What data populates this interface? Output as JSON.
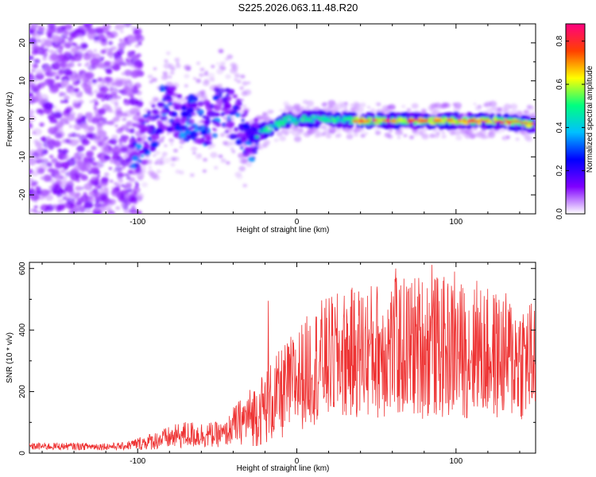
{
  "title": "S225.2026.063.11.48.R20",
  "chart_data": [
    {
      "type": "heatmap",
      "name": "spectrogram",
      "xlabel": "Height of straight line (km)",
      "ylabel": "Frequency (Hz)",
      "xlim": [
        -168,
        150
      ],
      "ylim": [
        -25,
        25
      ],
      "xticks": [
        -100,
        0,
        100
      ],
      "yticks": [
        -20,
        -10,
        0,
        10,
        20
      ],
      "ridge": [
        {
          "x": -100,
          "y": -8
        },
        {
          "x": -90,
          "y": -2
        },
        {
          "x": -82,
          "y": 4
        },
        {
          "x": -75,
          "y": 1
        },
        {
          "x": -65,
          "y": 0
        },
        {
          "x": -55,
          "y": -1
        },
        {
          "x": -48,
          "y": 4
        },
        {
          "x": -40,
          "y": 1
        },
        {
          "x": -30,
          "y": -5
        },
        {
          "x": -20,
          "y": -3
        },
        {
          "x": -10,
          "y": -1
        },
        {
          "x": -5,
          "y": 0
        },
        {
          "x": 0,
          "y": -1
        },
        {
          "x": 5,
          "y": 0
        },
        {
          "x": 15,
          "y": 0
        },
        {
          "x": 40,
          "y": -0.5
        },
        {
          "x": 80,
          "y": -0.5
        },
        {
          "x": 120,
          "y": -0.5
        },
        {
          "x": 140,
          "y": -1
        },
        {
          "x": 148,
          "y": -1.5
        }
      ],
      "colorbar": {
        "label": "Normalized spectral amplitude",
        "range": [
          0.0,
          0.88
        ],
        "ticks": [
          "0.0",
          "0.2",
          "0.4",
          "0.6",
          "0.8"
        ],
        "colors": [
          "#ffffff",
          "#8000ff",
          "#0000ff",
          "#00c0ff",
          "#00ff80",
          "#ffff00",
          "#ff4000",
          "#ff0080"
        ]
      }
    },
    {
      "type": "line",
      "name": "snr",
      "xlabel": "Height of straight line (km)",
      "ylabel": "SNR (10 * v/v)",
      "xlim": [
        -168,
        150
      ],
      "ylim": [
        0,
        620
      ],
      "xticks": [
        -100,
        0,
        100
      ],
      "yticks": [
        0,
        200,
        400,
        600
      ],
      "color": "#ee3333",
      "envelope": [
        {
          "x": -168,
          "mean": 22,
          "amp": 12
        },
        {
          "x": -110,
          "mean": 22,
          "amp": 12
        },
        {
          "x": -95,
          "mean": 35,
          "amp": 25
        },
        {
          "x": -70,
          "mean": 60,
          "amp": 45
        },
        {
          "x": -45,
          "mean": 60,
          "amp": 40
        },
        {
          "x": -40,
          "mean": 90,
          "amp": 60
        },
        {
          "x": -25,
          "mean": 130,
          "amp": 110
        },
        {
          "x": -10,
          "mean": 190,
          "amp": 150
        },
        {
          "x": 0,
          "mean": 240,
          "amp": 170
        },
        {
          "x": 15,
          "mean": 300,
          "amp": 200
        },
        {
          "x": 40,
          "mean": 330,
          "amp": 220
        },
        {
          "x": 80,
          "mean": 350,
          "amp": 240
        },
        {
          "x": 110,
          "mean": 330,
          "amp": 220
        },
        {
          "x": 150,
          "mean": 300,
          "amp": 200
        }
      ],
      "spikes": [
        {
          "x": -18,
          "y": 495
        },
        {
          "x": 62,
          "y": 600
        },
        {
          "x": 85,
          "y": 612
        },
        {
          "x": 99,
          "y": 590
        },
        {
          "x": 113,
          "y": 560
        }
      ]
    }
  ]
}
